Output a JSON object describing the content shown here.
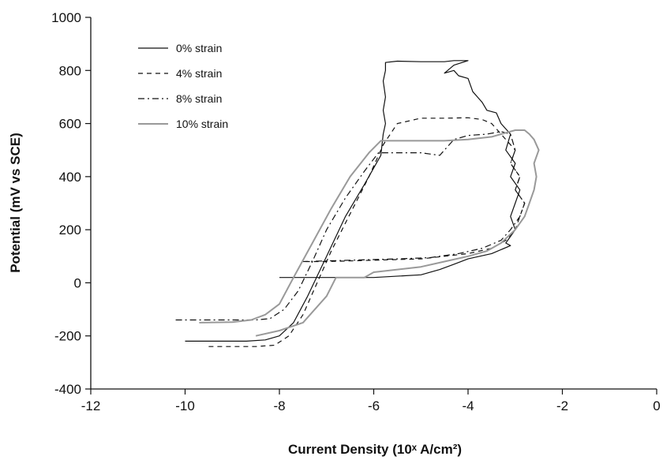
{
  "chart_data": {
    "type": "line",
    "xlabel": "Current Density (10ˣ A/cm²)",
    "ylabel": "Potential (mV vs SCE)",
    "xlim": [
      -12,
      0
    ],
    "ylim": [
      -400,
      1000
    ],
    "xticks": [
      -12,
      -10,
      -8,
      -6,
      -4,
      -2,
      0
    ],
    "yticks": [
      -400,
      -200,
      0,
      200,
      400,
      600,
      800,
      1000
    ],
    "grid": false,
    "legend_position": "top-left",
    "series": [
      {
        "name": "0% strain",
        "color": "#111111",
        "dash": "solid",
        "x": [
          -10.0,
          -8.7,
          -8.3,
          -8.0,
          -7.7,
          -7.4,
          -7.0,
          -6.6,
          -6.2,
          -5.85,
          -5.8,
          -5.75,
          -5.8,
          -5.75,
          -5.8,
          -5.75,
          -5.75,
          -5.5,
          -5.0,
          -4.5,
          -4.3,
          -4.0,
          -4.3,
          -4.5,
          -4.3,
          -4.2,
          -4.0,
          -3.9,
          -3.8,
          -3.7,
          -3.6,
          -3.4,
          -3.3,
          -3.1,
          -3.2,
          -3.0,
          -3.1,
          -2.9,
          -3.0,
          -3.1,
          -3.0,
          -3.2,
          -3.1,
          -3.5,
          -4.0,
          -4.3,
          -4.6,
          -5.0,
          -6.0,
          -7.0,
          -8.0
        ],
        "y": [
          -220,
          -220,
          -215,
          -200,
          -150,
          -50,
          100,
          250,
          370,
          480,
          560,
          600,
          650,
          700,
          760,
          800,
          830,
          835,
          833,
          833,
          837,
          837,
          820,
          790,
          800,
          780,
          770,
          720,
          700,
          680,
          650,
          640,
          600,
          560,
          500,
          450,
          400,
          350,
          300,
          250,
          200,
          150,
          140,
          110,
          90,
          70,
          50,
          30,
          20,
          20,
          20
        ]
      },
      {
        "name": "4% strain",
        "color": "#111111",
        "dash": "6,5",
        "x": [
          -9.5,
          -8.5,
          -8.1,
          -7.8,
          -7.5,
          -7.2,
          -6.9,
          -6.5,
          -6.1,
          -5.8,
          -5.5,
          -5.0,
          -4.5,
          -4.0,
          -3.7,
          -3.5,
          -3.3,
          -3.0,
          -3.1,
          -2.9,
          -3.0,
          -2.8,
          -2.9,
          -3.0,
          -3.2,
          -3.5,
          -4.0,
          -4.5,
          -5.0,
          -6.0,
          -7.0,
          -7.5
        ],
        "y": [
          -240,
          -240,
          -235,
          -200,
          -120,
          0,
          120,
          260,
          400,
          520,
          600,
          620,
          620,
          622,
          615,
          600,
          560,
          500,
          450,
          400,
          350,
          300,
          250,
          200,
          160,
          130,
          110,
          100,
          90,
          85,
          80,
          80
        ]
      },
      {
        "name": "8% strain",
        "color": "#111111",
        "dash": "8,4,2,4",
        "x": [
          -10.2,
          -9.0,
          -8.5,
          -8.2,
          -7.9,
          -7.6,
          -7.3,
          -7.0,
          -6.6,
          -6.2,
          -5.9,
          -5.5,
          -5.0,
          -4.6,
          -4.5,
          -4.3,
          -4.0,
          -3.6,
          -3.3,
          -3.1,
          -3.0,
          -3.1,
          -2.9,
          -3.0,
          -2.8,
          -2.9,
          -3.1,
          -3.3,
          -3.7,
          -4.2,
          -4.8,
          -5.5,
          -6.5,
          -7.5
        ],
        "y": [
          -140,
          -140,
          -140,
          -135,
          -100,
          -30,
          80,
          200,
          320,
          420,
          490,
          490,
          490,
          480,
          500,
          540,
          555,
          560,
          570,
          560,
          500,
          450,
          400,
          350,
          300,
          250,
          200,
          160,
          130,
          110,
          95,
          90,
          85,
          80
        ]
      },
      {
        "name": "10% strain",
        "color": "#999999",
        "dash": "solid",
        "x": [
          -9.7,
          -9.0,
          -8.6,
          -8.3,
          -8.0,
          -7.7,
          -7.3,
          -6.9,
          -6.5,
          -6.1,
          -5.85,
          -5.5,
          -5.0,
          -4.5,
          -4.0,
          -3.5,
          -3.2,
          -3.0,
          -2.8,
          -2.7,
          -2.6,
          -2.5,
          -2.6,
          -2.55,
          -2.6,
          -2.7,
          -2.8,
          -3.0,
          -3.3,
          -3.6,
          -4.0,
          -4.5,
          -5.0,
          -6.0,
          -6.2,
          -6.8,
          -7.0,
          -7.5,
          -8.0,
          -8.5
        ],
        "y": [
          -150,
          -148,
          -140,
          -120,
          -80,
          20,
          150,
          280,
          400,
          490,
          535,
          535,
          535,
          535,
          540,
          550,
          565,
          575,
          575,
          560,
          540,
          500,
          450,
          400,
          350,
          300,
          250,
          200,
          150,
          120,
          100,
          80,
          60,
          40,
          20,
          20,
          -50,
          -150,
          -180,
          -200
        ]
      }
    ]
  }
}
